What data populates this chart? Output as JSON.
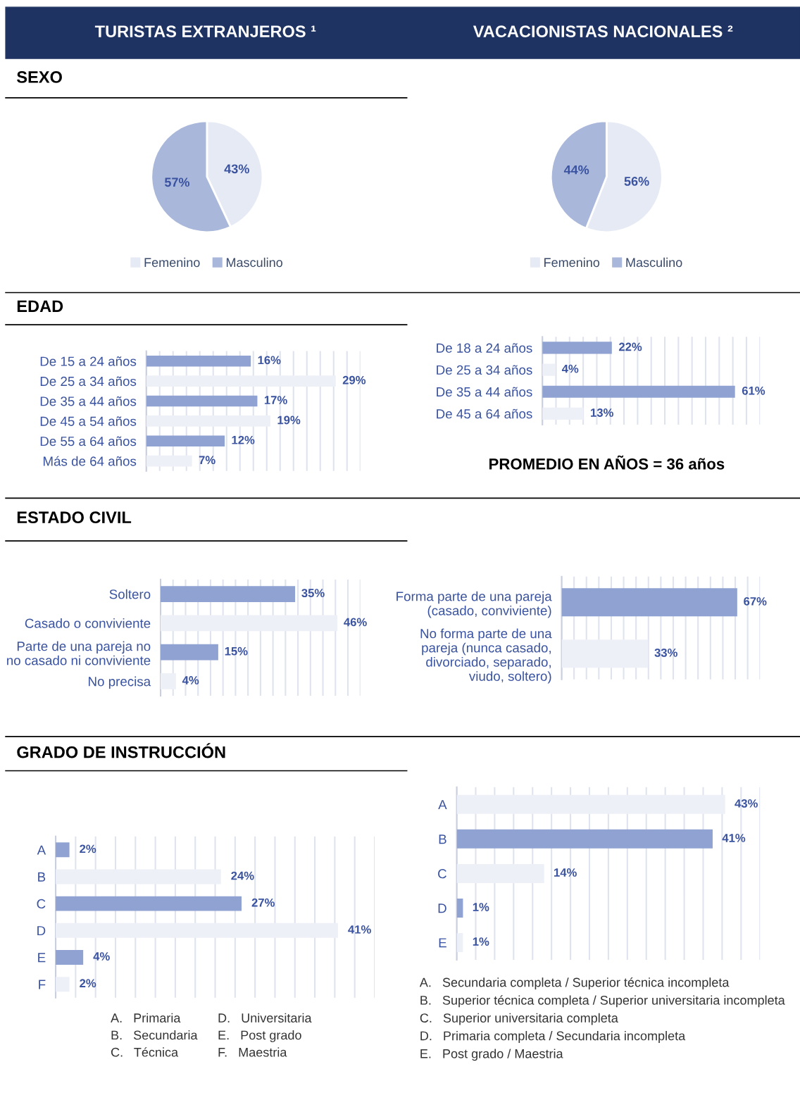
{
  "chart_data": [
    {
      "type": "pie",
      "title": "SEXO",
      "subtitle": "TURISTAS EXTRANJEROS ¹",
      "categories": [
        "Femenino",
        "Masculino"
      ],
      "values": [
        43,
        57
      ],
      "value_labels": [
        "43%",
        "57%"
      ],
      "colors": [
        "#e6eaf4",
        "#a9b7da"
      ],
      "legend": "bottom"
    },
    {
      "type": "pie",
      "subtitle": "VACACIONISTAS NACIONALES ²",
      "categories": [
        "Femenino",
        "Masculino"
      ],
      "values": [
        56,
        44
      ],
      "value_labels": [
        "56%",
        "44%"
      ],
      "colors": [
        "#e6eaf4",
        "#a9b7da"
      ],
      "legend": "bottom"
    },
    {
      "type": "bar",
      "orientation": "horizontal",
      "title": "EDAD",
      "categories": [
        "De 15 a 24 años",
        "De 25 a 34 años",
        "De 35 a 44 años",
        "De 45 a 54 años",
        "De 55 a 64 años",
        "Más de 64 años"
      ],
      "values": [
        16,
        29,
        17,
        19,
        12,
        7
      ],
      "value_labels": [
        "16%",
        "29%",
        "17%",
        "19%",
        "12%",
        "7%"
      ],
      "colors": [
        "#8fa2d2",
        "#eef0f7",
        "#8fa2d2",
        "#eef0f7",
        "#8fa2d2",
        "#eef0f7"
      ],
      "grid": "x",
      "tick_labels": "y"
    },
    {
      "type": "bar",
      "orientation": "horizontal",
      "categories": [
        "De 18 a 24 años",
        "De 25 a 34 años",
        "De 35 a 44 años",
        "De 45 a 64 años"
      ],
      "values": [
        22,
        4,
        61,
        13
      ],
      "value_labels": [
        "22%",
        "4%",
        "61%",
        "13%"
      ],
      "colors": [
        "#8fa2d2",
        "#eef0f7",
        "#8fa2d2",
        "#eef0f7"
      ],
      "grid": "x",
      "tick_labels": "y",
      "annotations": [
        "PROMEDIO EN AÑOS = 36 años"
      ]
    },
    {
      "type": "bar",
      "orientation": "horizontal",
      "title": "ESTADO CIVIL",
      "categories": [
        "Soltero",
        "Casado o conviviente",
        "Parte de una pareja no\nno casado ni conviviente",
        "No precisa"
      ],
      "values": [
        35,
        46,
        15,
        4
      ],
      "value_labels": [
        "35%",
        "46%",
        "15%",
        "4%"
      ],
      "colors": [
        "#8fa2d2",
        "#eef0f7",
        "#8fa2d2",
        "#eef0f7"
      ],
      "grid": "x",
      "tick_labels": "y"
    },
    {
      "type": "bar",
      "orientation": "horizontal",
      "categories": [
        "Forma parte de una pareja\n(casado, conviviente)",
        "No forma parte de una\npareja (nunca casado,\ndivorciado, separado,\nviudo, soltero)"
      ],
      "values": [
        67,
        33
      ],
      "value_labels": [
        "67%",
        "33%"
      ],
      "colors": [
        "#8fa2d2",
        "#eef0f7"
      ],
      "grid": "x",
      "tick_labels": "y"
    },
    {
      "type": "bar",
      "orientation": "horizontal",
      "title": "GRADO DE INSTRUCCIÓN",
      "categories": [
        "A",
        "B",
        "C",
        "D",
        "E",
        "F"
      ],
      "values": [
        2,
        24,
        27,
        41,
        4,
        2
      ],
      "value_labels": [
        "2%",
        "24%",
        "27%",
        "41%",
        "4%",
        "2%"
      ],
      "colors": [
        "#8fa2d2",
        "#eef0f7",
        "#8fa2d2",
        "#eef0f7",
        "#8fa2d2",
        "#eef0f7"
      ],
      "grid": "x",
      "tick_labels": "y",
      "annotations": [
        "A.   Primaria",
        "B.   Secundaria",
        "C.   Técnica",
        "D.   Universitaria",
        "E.   Post grado",
        "F.   Maestria"
      ]
    },
    {
      "type": "bar",
      "orientation": "horizontal",
      "categories": [
        "A",
        "B",
        "C",
        "D",
        "E"
      ],
      "values": [
        43,
        41,
        14,
        1,
        1
      ],
      "value_labels": [
        "43%",
        "41%",
        "14%",
        "1%",
        "1%"
      ],
      "colors": [
        "#eef0f7",
        "#8fa2d2",
        "#eef0f7",
        "#8fa2d2",
        "#eef0f7"
      ],
      "grid": "x",
      "tick_labels": "y",
      "annotations": [
        "A.   Secundaria completa / Superior técnica incompleta",
        "B.   Superior técnica completa / Superior universitaria incompleta",
        "C.   Superior universitaria completa",
        "D.   Primaria completa / Secundaria incompleta",
        "E.   Post grado / Maestria"
      ]
    }
  ]
}
